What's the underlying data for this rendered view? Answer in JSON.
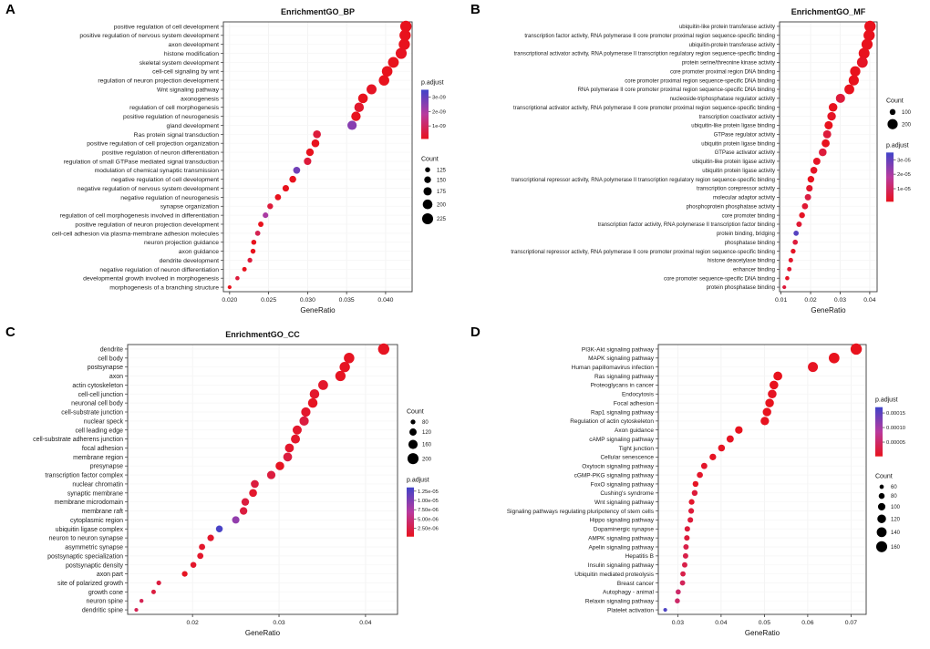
{
  "figure": {
    "background": "#ffffff"
  },
  "chart_data": [
    {
      "type": "scatter",
      "panel_letter": "A",
      "title": "EnrichmentGO_BP",
      "xlabel": "GeneRatio",
      "xlim": [
        0.0192,
        0.0434
      ],
      "x_ticks": [
        "0.020",
        "0.025",
        "0.030",
        "0.035",
        "0.040"
      ],
      "x_tick_values": [
        0.02,
        0.025,
        0.03,
        0.035,
        0.04
      ],
      "legend_order": [
        "color",
        "size"
      ],
      "color_scale": {
        "legend_title": "p.adjust",
        "stops": [
          "#e8121d",
          "#b83a9e",
          "#4044c9"
        ],
        "domain": [
          1e-10,
          3.5e-09
        ],
        "legend_labels": [
          "3e-09",
          "2e-09",
          "1e-09"
        ],
        "legend_values": [
          3e-09,
          2e-09,
          1e-09
        ]
      },
      "size_scale": {
        "legend_title": "Count",
        "values": [
          125,
          150,
          175,
          200,
          225
        ]
      },
      "categories": [
        "positive regulation of cell development",
        "positive regulation of nervous system development",
        "axon development",
        "histone modification",
        "skeletal system development",
        "cell-cell signaling by wnt",
        "regulation of neuron projection development",
        "Wnt signaling pathway",
        "axonogenesis",
        "regulation of cell morphogenesis",
        "positive regulation of neurogenesis",
        "gland development",
        "Ras protein signal transduction",
        "positive regulation of cell projection organization",
        "positive regulation of neuron differentiation",
        "regulation of small GTPase mediated signal transduction",
        "modulation of chemical synaptic transmission",
        "negative regulation of cell development",
        "negative regulation of nervous system development",
        "negative regulation of neurogenesis",
        "synapse organization",
        "regulation of cell morphogenesis involved in differentiation",
        "positive regulation of neuron projection development",
        "cell-cell adhesion via plasma-membrane adhesion molecules",
        "neuron projection guidance",
        "axon guidance",
        "dendrite development",
        "negative regulation of neuron differentiation",
        "developmental growth involved in morphogenesis",
        "morphogenesis of a branching structure"
      ],
      "gene_ratio": [
        0.0426,
        0.0425,
        0.0424,
        0.042,
        0.041,
        0.0402,
        0.0398,
        0.0382,
        0.0371,
        0.0366,
        0.0362,
        0.0357,
        0.0312,
        0.031,
        0.0303,
        0.03,
        0.0286,
        0.0281,
        0.0272,
        0.0262,
        0.0252,
        0.0246,
        0.024,
        0.0236,
        0.0231,
        0.023,
        0.0226,
        0.0219,
        0.021,
        0.02
      ],
      "count": [
        231,
        230,
        229,
        226,
        221,
        217,
        215,
        206,
        200,
        198,
        196,
        193,
        169,
        168,
        164,
        162,
        155,
        152,
        147,
        142,
        136,
        133,
        130,
        128,
        125,
        124,
        122,
        118,
        113,
        108
      ],
      "p_adjust": [
        1e-10,
        1e-10,
        1e-10,
        1.5e-10,
        1e-10,
        1e-10,
        1e-10,
        2e-10,
        1e-10,
        3e-10,
        1e-10,
        2.5e-09,
        5e-10,
        1e-10,
        1e-10,
        5e-10,
        2.8e-09,
        1e-10,
        1e-10,
        1e-10,
        5e-10,
        2e-09,
        1e-10,
        8e-10,
        1e-10,
        1e-10,
        5e-10,
        1e-10,
        5e-10,
        1e-10
      ]
    },
    {
      "type": "scatter",
      "panel_letter": "B",
      "title": "EnrichmentGO_MF",
      "xlabel": "GeneRatio",
      "xlim": [
        0.0095,
        0.0425
      ],
      "x_ticks": [
        "0.01",
        "0.02",
        "0.03",
        "0.04"
      ],
      "x_tick_values": [
        0.01,
        0.02,
        0.03,
        0.04
      ],
      "legend_order": [
        "size",
        "color"
      ],
      "color_scale": {
        "legend_title": "p.adjust",
        "stops": [
          "#e8121d",
          "#b83a9e",
          "#4044c9"
        ],
        "domain": [
          1e-06,
          3.5e-05
        ],
        "legend_labels": [
          "3e-05",
          "2e-05",
          "1e-05"
        ],
        "legend_values": [
          3e-05,
          2e-05,
          1e-05
        ]
      },
      "size_scale": {
        "legend_title": "Count",
        "values": [
          100,
          200
        ]
      },
      "categories": [
        "ubiquitin-like protein transferase activity",
        "transcription factor activity, RNA polymerase II core promoter proximal region sequence-specific binding",
        "ubiquitin-protein transferase activity",
        "transcriptional activator activity, RNA polymerase II transcription regulatory region sequence-specific binding",
        "protein serine/threonine kinase activity",
        "core promoter proximal region DNA binding",
        "core promoter proximal region sequence-specific DNA binding",
        "RNA polymerase II core promoter proximal region sequence-specific DNA binding",
        "nucleoside-triphosphatase regulator activity",
        "transcriptional activator activity, RNA polymerase II core promoter proximal region sequence-specific binding",
        "transcription coactivator activity",
        "ubiquitin-like protein ligase binding",
        "GTPase regulator activity",
        "ubiquitin protein ligase binding",
        "GTPase activator activity",
        "ubiquitin-like protein ligase activity",
        "ubiquitin protein ligase activity",
        "transcriptional repressor activity, RNA polymerase II transcription regulatory region sequence-specific binding",
        "transcription corepressor activity",
        "molecular adaptor activity",
        "phosphoprotein phosphatase activity",
        "core promoter binding",
        "transcription factor activity, RNA polymerase II transcription factor binding",
        "protein binding, bridging",
        "phosphatase binding",
        "transcriptional repressor activity, RNA polymerase II core promoter proximal region sequence-specific binding",
        "histone deacetylase binding",
        "enhancer binding",
        "core promoter sequence-specific DNA binding",
        "protein phosphatase binding"
      ],
      "gene_ratio": [
        0.0401,
        0.0398,
        0.0391,
        0.0381,
        0.0375,
        0.0351,
        0.0346,
        0.0331,
        0.0301,
        0.0276,
        0.0271,
        0.0261,
        0.0256,
        0.0251,
        0.0241,
        0.0221,
        0.0211,
        0.0201,
        0.0196,
        0.0191,
        0.0181,
        0.0171,
        0.0161,
        0.0151,
        0.0148,
        0.0141,
        0.0133,
        0.0128,
        0.0121,
        0.0111
      ],
      "count": [
        232,
        230,
        226,
        220,
        217,
        203,
        200,
        191,
        174,
        160,
        157,
        151,
        148,
        145,
        139,
        128,
        122,
        116,
        113,
        110,
        105,
        99,
        93,
        87,
        86,
        82,
        77,
        74,
        70,
        64
      ],
      "p_adjust": [
        1e-06,
        1e-06,
        1e-06,
        1e-06,
        2e-06,
        1e-06,
        1e-06,
        1e-06,
        5e-06,
        1e-06,
        2e-06,
        1e-06,
        5e-06,
        1e-06,
        5e-06,
        2e-06,
        2e-06,
        1e-06,
        3e-06,
        6e-06,
        4e-06,
        2e-06,
        4e-06,
        3.2e-05,
        5e-06,
        2e-06,
        3e-06,
        4e-06,
        2e-06,
        5e-06
      ]
    },
    {
      "type": "scatter",
      "panel_letter": "C",
      "title": "EnrichmentGO_CC",
      "xlabel": "GeneRatio",
      "xlim": [
        0.0125,
        0.0437
      ],
      "x_ticks": [
        "0.02",
        "0.03",
        "0.04"
      ],
      "x_tick_values": [
        0.02,
        0.03,
        0.04
      ],
      "legend_order": [
        "size",
        "color"
      ],
      "color_scale": {
        "legend_title": "p.adjust",
        "stops": [
          "#e8121d",
          "#b83a9e",
          "#4044c9"
        ],
        "domain": [
          2.5e-07,
          1.35e-05
        ],
        "legend_labels": [
          "1.25e-05",
          "1.00e-05",
          "7.50e-06",
          "5.00e-06",
          "2.50e-06"
        ],
        "legend_values": [
          1.25e-05,
          1e-05,
          7.5e-06,
          5e-06,
          2.5e-06
        ]
      },
      "size_scale": {
        "legend_title": "Count",
        "values": [
          80,
          120,
          160,
          200
        ]
      },
      "categories": [
        "dendrite",
        "cell body",
        "postsynapse",
        "axon",
        "actin cytoskeleton",
        "cell-cell junction",
        "neuronal cell body",
        "cell-substrate junction",
        "nuclear speck",
        "cell leading edge",
        "cell-substrate adherens junction",
        "focal adhesion",
        "membrane region",
        "presynapse",
        "transcription factor complex",
        "nuclear chromatin",
        "synaptic membrane",
        "membrane microdomain",
        "membrane raft",
        "cytoplasmic region",
        "ubiquitin ligase complex",
        "neuron to neuron synapse",
        "asymmetric synapse",
        "postsynaptic specialization",
        "postsynaptic density",
        "axon part",
        "site of polarized growth",
        "growth cone",
        "neuron spine",
        "dendritic spine"
      ],
      "gene_ratio": [
        0.0421,
        0.0381,
        0.0376,
        0.0371,
        0.0351,
        0.0341,
        0.0339,
        0.0331,
        0.0329,
        0.0321,
        0.0319,
        0.0312,
        0.031,
        0.0301,
        0.0291,
        0.0272,
        0.027,
        0.0261,
        0.0259,
        0.025,
        0.0231,
        0.0221,
        0.0211,
        0.0209,
        0.0201,
        0.0191,
        0.0161,
        0.0155,
        0.0141,
        0.0135
      ],
      "count": [
        206,
        187,
        184,
        182,
        172,
        167,
        166,
        162,
        161,
        157,
        156,
        153,
        152,
        147,
        142,
        133,
        132,
        128,
        127,
        122,
        113,
        108,
        103,
        102,
        98,
        93,
        79,
        76,
        69,
        66
      ],
      "p_adjust": [
        5e-07,
        5e-07,
        5e-07,
        5e-07,
        1e-06,
        1e-06,
        5e-07,
        1e-06,
        2e-06,
        1e-06,
        1e-06,
        1e-06,
        2e-06,
        5e-07,
        2e-06,
        2e-06,
        1e-06,
        2e-06,
        2e-06,
        9e-06,
        1.3e-05,
        1e-06,
        1e-06,
        1e-06,
        1e-06,
        5e-07,
        2e-06,
        2e-06,
        3e-06,
        3e-06
      ]
    },
    {
      "type": "scatter",
      "panel_letter": "D",
      "title": "",
      "xlabel": "GeneRatio",
      "xlim": [
        0.0255,
        0.0735
      ],
      "x_ticks": [
        "0.03",
        "0.04",
        "0.05",
        "0.06",
        "0.07"
      ],
      "x_tick_values": [
        0.03,
        0.04,
        0.05,
        0.06,
        0.07
      ],
      "legend_order": [
        "color",
        "size"
      ],
      "color_scale": {
        "legend_title": "p.adjust",
        "stops": [
          "#e8121d",
          "#b83a9e",
          "#4044c9"
        ],
        "domain": [
          1e-06,
          0.00017
        ],
        "legend_labels": [
          "0.00015",
          "0.00010",
          "0.00005"
        ],
        "legend_values": [
          0.00015,
          0.0001,
          5e-05
        ]
      },
      "size_scale": {
        "legend_title": "Count",
        "values": [
          60,
          80,
          100,
          120,
          140,
          160
        ]
      },
      "categories": [
        "PI3K-Akt signaling pathway",
        "MAPK signaling pathway",
        "Human papillomavirus infection",
        "Ras signaling pathway",
        "Proteoglycans in cancer",
        "Endocytosis",
        "Focal adhesion",
        "Rap1 signaling pathway",
        "Regulation of actin cytoskeleton",
        "Axon guidance",
        "cAMP signaling pathway",
        "Tight junction",
        "Cellular senescence",
        "Oxytocin signaling pathway",
        "cGMP-PKG signaling pathway",
        "FoxO signaling pathway",
        "Cushing's syndrome",
        "Wnt signaling pathway",
        "Signaling pathways regulating pluripotency of stem cells",
        "Hippo signaling pathway",
        "Dopaminergic synapse",
        "AMPK signaling pathway",
        "Apelin signaling pathway",
        "Hepatitis B",
        "Insulin signaling pathway",
        "Ubiquitin mediated proteolysis",
        "Breast cancer",
        "Autophagy - animal",
        "Relaxin signaling pathway",
        "Platelet activation"
      ],
      "gene_ratio": [
        0.0712,
        0.0661,
        0.0612,
        0.0531,
        0.0522,
        0.0518,
        0.0512,
        0.0506,
        0.0501,
        0.0441,
        0.0421,
        0.0401,
        0.0381,
        0.0361,
        0.0351,
        0.0341,
        0.0339,
        0.0332,
        0.0331,
        0.0329,
        0.0322,
        0.0321,
        0.0319,
        0.0318,
        0.0316,
        0.0312,
        0.0311,
        0.0301,
        0.0299,
        0.0271
      ],
      "count": [
        166,
        154,
        143,
        124,
        122,
        121,
        119,
        118,
        117,
        103,
        98,
        93,
        89,
        84,
        82,
        79,
        79,
        77,
        77,
        76,
        75,
        75,
        74,
        74,
        73,
        72,
        72,
        70,
        69,
        55
      ],
      "p_adjust": [
        1e-06,
        1e-06,
        5e-06,
        1e-06,
        1e-06,
        5e-06,
        1e-06,
        1e-06,
        2e-06,
        1e-06,
        5e-06,
        5e-06,
        5e-06,
        1e-05,
        1e-05,
        5e-06,
        2e-05,
        1e-05,
        2e-05,
        2e-05,
        2e-05,
        2e-05,
        3e-05,
        3e-05,
        3e-05,
        3e-05,
        4e-05,
        5e-05,
        5e-05,
        0.00016
      ]
    }
  ]
}
